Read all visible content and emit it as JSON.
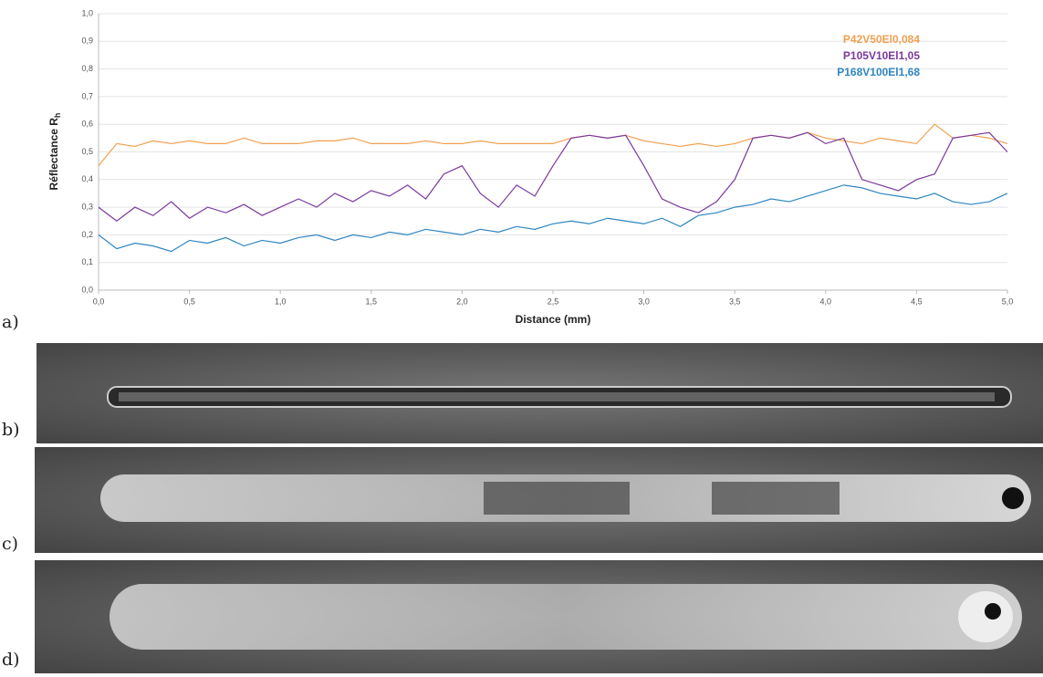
{
  "chart_data": {
    "type": "line",
    "ylabel": "Réflectance R",
    "ylabel_subscript": "h",
    "xlabel": "Distance (mm)",
    "x": [
      0,
      0.1,
      0.2,
      0.3,
      0.4,
      0.5,
      0.6,
      0.7,
      0.8,
      0.9,
      1,
      1.1,
      1.2,
      1.3,
      1.4,
      1.5,
      1.6,
      1.7,
      1.8,
      1.9,
      2,
      2.1,
      2.2,
      2.3,
      2.4,
      2.5,
      2.6,
      2.7,
      2.8,
      2.9,
      3,
      3.1,
      3.2,
      3.3,
      3.4,
      3.5,
      3.6,
      3.7,
      3.8,
      3.9,
      4,
      4.1,
      4.2,
      4.3,
      4.4,
      4.5,
      4.6,
      4.7,
      4.8,
      4.9,
      5
    ],
    "series": [
      {
        "name": "P42V50El0,084",
        "color": "#f0a050",
        "values": [
          0.45,
          0.53,
          0.52,
          0.54,
          0.53,
          0.54,
          0.53,
          0.53,
          0.55,
          0.53,
          0.53,
          0.53,
          0.54,
          0.54,
          0.55,
          0.53,
          0.53,
          0.53,
          0.54,
          0.53,
          0.53,
          0.54,
          0.53,
          0.53,
          0.53,
          0.53,
          0.55,
          0.56,
          0.55,
          0.56,
          0.54,
          0.53,
          0.52,
          0.53,
          0.52,
          0.53,
          0.55,
          0.56,
          0.55,
          0.57,
          0.55,
          0.54,
          0.53,
          0.55,
          0.54,
          0.53,
          0.6,
          0.55,
          0.56,
          0.55,
          0.53
        ]
      },
      {
        "name": "P105V10El1,05",
        "color": "#7a3a9e",
        "values": [
          0.3,
          0.25,
          0.3,
          0.27,
          0.32,
          0.26,
          0.3,
          0.28,
          0.31,
          0.27,
          0.3,
          0.33,
          0.3,
          0.35,
          0.32,
          0.36,
          0.34,
          0.38,
          0.33,
          0.42,
          0.45,
          0.35,
          0.3,
          0.38,
          0.34,
          0.45,
          0.55,
          0.56,
          0.55,
          0.56,
          0.45,
          0.33,
          0.3,
          0.28,
          0.32,
          0.4,
          0.55,
          0.56,
          0.55,
          0.57,
          0.53,
          0.55,
          0.4,
          0.38,
          0.36,
          0.4,
          0.42,
          0.55,
          0.56,
          0.57,
          0.5
        ]
      },
      {
        "name": "P168V100El1,68",
        "color": "#2e86c1",
        "values": [
          0.2,
          0.15,
          0.17,
          0.16,
          0.14,
          0.18,
          0.17,
          0.19,
          0.16,
          0.18,
          0.17,
          0.19,
          0.2,
          0.18,
          0.2,
          0.19,
          0.21,
          0.2,
          0.22,
          0.21,
          0.2,
          0.22,
          0.21,
          0.23,
          0.22,
          0.24,
          0.25,
          0.24,
          0.26,
          0.25,
          0.24,
          0.26,
          0.23,
          0.27,
          0.28,
          0.3,
          0.31,
          0.33,
          0.32,
          0.34,
          0.36,
          0.38,
          0.37,
          0.35,
          0.34,
          0.33,
          0.35,
          0.32,
          0.31,
          0.32,
          0.35
        ]
      }
    ],
    "xlim": [
      0,
      5
    ],
    "ylim": [
      0,
      1
    ],
    "xticks": [
      {
        "value": 0,
        "label": "0,0"
      },
      {
        "value": 0.5,
        "label": "0,5"
      },
      {
        "value": 1,
        "label": "1,0"
      },
      {
        "value": 1.5,
        "label": "1,5"
      },
      {
        "value": 2,
        "label": "2,0"
      },
      {
        "value": 2.5,
        "label": "2,5"
      },
      {
        "value": 3,
        "label": "3,0"
      },
      {
        "value": 3.5,
        "label": "3,5"
      },
      {
        "value": 4,
        "label": "4,0"
      },
      {
        "value": 4.5,
        "label": "4,5"
      },
      {
        "value": 5,
        "label": "5,0"
      }
    ],
    "yticks": [
      {
        "value": 0,
        "label": "0,0"
      },
      {
        "value": 0.1,
        "label": "0,1"
      },
      {
        "value": 0.2,
        "label": "0,2"
      },
      {
        "value": 0.3,
        "label": "0,3"
      },
      {
        "value": 0.4,
        "label": "0,4"
      },
      {
        "value": 0.5,
        "label": "0,5"
      },
      {
        "value": 0.6,
        "label": "0,6"
      },
      {
        "value": 0.7,
        "label": "0,7"
      },
      {
        "value": 0.8,
        "label": "0,8"
      },
      {
        "value": 0.9,
        "label": "0,9"
      },
      {
        "value": 1,
        "label": "1,0"
      }
    ]
  },
  "panels": [
    "a)",
    "b)",
    "c)",
    "d)"
  ]
}
